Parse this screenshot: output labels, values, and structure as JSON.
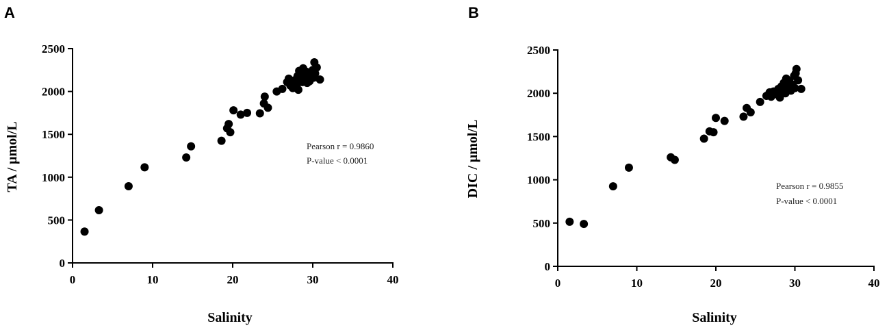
{
  "chart_data": [
    {
      "type": "scatter",
      "panel_label": "A",
      "xlabel": "Salinity",
      "ylabel": "TA / μmol/L",
      "xlim": [
        0,
        40
      ],
      "ylim": [
        0,
        2500
      ],
      "xticks": [
        0,
        10,
        20,
        30,
        40
      ],
      "yticks": [
        0,
        500,
        1000,
        1500,
        2000,
        2500
      ],
      "grid": false,
      "color": "#000000",
      "annotations": [
        "Pearson r = 0.9860",
        "P-value < 0.0001"
      ],
      "points": [
        [
          1.5,
          365
        ],
        [
          3.3,
          615
        ],
        [
          7.0,
          895
        ],
        [
          9.0,
          1115
        ],
        [
          14.2,
          1230
        ],
        [
          14.8,
          1360
        ],
        [
          18.6,
          1425
        ],
        [
          19.3,
          1570
        ],
        [
          19.5,
          1620
        ],
        [
          19.7,
          1525
        ],
        [
          20.1,
          1780
        ],
        [
          21.0,
          1730
        ],
        [
          21.8,
          1750
        ],
        [
          23.4,
          1745
        ],
        [
          23.9,
          1860
        ],
        [
          24.0,
          1940
        ],
        [
          24.4,
          1810
        ],
        [
          25.5,
          2000
        ],
        [
          26.2,
          2030
        ],
        [
          26.8,
          2110
        ],
        [
          27.0,
          2150
        ],
        [
          27.2,
          2070
        ],
        [
          27.5,
          2040
        ],
        [
          27.7,
          2130
        ],
        [
          28.0,
          2080
        ],
        [
          28.1,
          2180
        ],
        [
          28.2,
          2020
        ],
        [
          28.3,
          2240
        ],
        [
          28.4,
          2150
        ],
        [
          28.6,
          2200
        ],
        [
          28.7,
          2110
        ],
        [
          28.8,
          2270
        ],
        [
          29.0,
          2170
        ],
        [
          29.2,
          2230
        ],
        [
          29.3,
          2100
        ],
        [
          29.5,
          2190
        ],
        [
          29.6,
          2120
        ],
        [
          29.8,
          2210
        ],
        [
          30.0,
          2250
        ],
        [
          30.1,
          2160
        ],
        [
          30.2,
          2340
        ],
        [
          30.3,
          2210
        ],
        [
          30.5,
          2280
        ],
        [
          30.9,
          2140
        ]
      ]
    },
    {
      "type": "scatter",
      "panel_label": "B",
      "xlabel": "Salinity",
      "ylabel": "DIC / μmol/L",
      "xlim": [
        0,
        40
      ],
      "ylim": [
        0,
        2500
      ],
      "xticks": [
        0,
        10,
        20,
        30,
        40
      ],
      "yticks": [
        0,
        500,
        1000,
        1500,
        2000,
        2500
      ],
      "grid": false,
      "color": "#000000",
      "annotations": [
        "Pearson r = 0.9855",
        "P-value < 0.0001"
      ],
      "points": [
        [
          1.5,
          515
        ],
        [
          3.3,
          490
        ],
        [
          7.0,
          925
        ],
        [
          9.0,
          1140
        ],
        [
          14.3,
          1260
        ],
        [
          14.8,
          1230
        ],
        [
          18.5,
          1475
        ],
        [
          19.2,
          1560
        ],
        [
          19.7,
          1550
        ],
        [
          20.0,
          1715
        ],
        [
          21.1,
          1680
        ],
        [
          23.5,
          1730
        ],
        [
          23.9,
          1830
        ],
        [
          24.4,
          1780
        ],
        [
          25.6,
          1900
        ],
        [
          26.4,
          1970
        ],
        [
          26.8,
          2010
        ],
        [
          27.0,
          1960
        ],
        [
          27.3,
          2020
        ],
        [
          27.6,
          1990
        ],
        [
          27.9,
          2050
        ],
        [
          28.1,
          1950
        ],
        [
          28.3,
          2080
        ],
        [
          28.4,
          2020
        ],
        [
          28.6,
          2120
        ],
        [
          28.8,
          2000
        ],
        [
          28.9,
          2170
        ],
        [
          29.1,
          2060
        ],
        [
          29.3,
          2140
        ],
        [
          29.5,
          2030
        ],
        [
          29.7,
          2100
        ],
        [
          29.9,
          2200
        ],
        [
          30.0,
          2060
        ],
        [
          30.1,
          2230
        ],
        [
          30.2,
          2280
        ],
        [
          30.4,
          2150
        ],
        [
          30.8,
          2050
        ]
      ]
    }
  ]
}
